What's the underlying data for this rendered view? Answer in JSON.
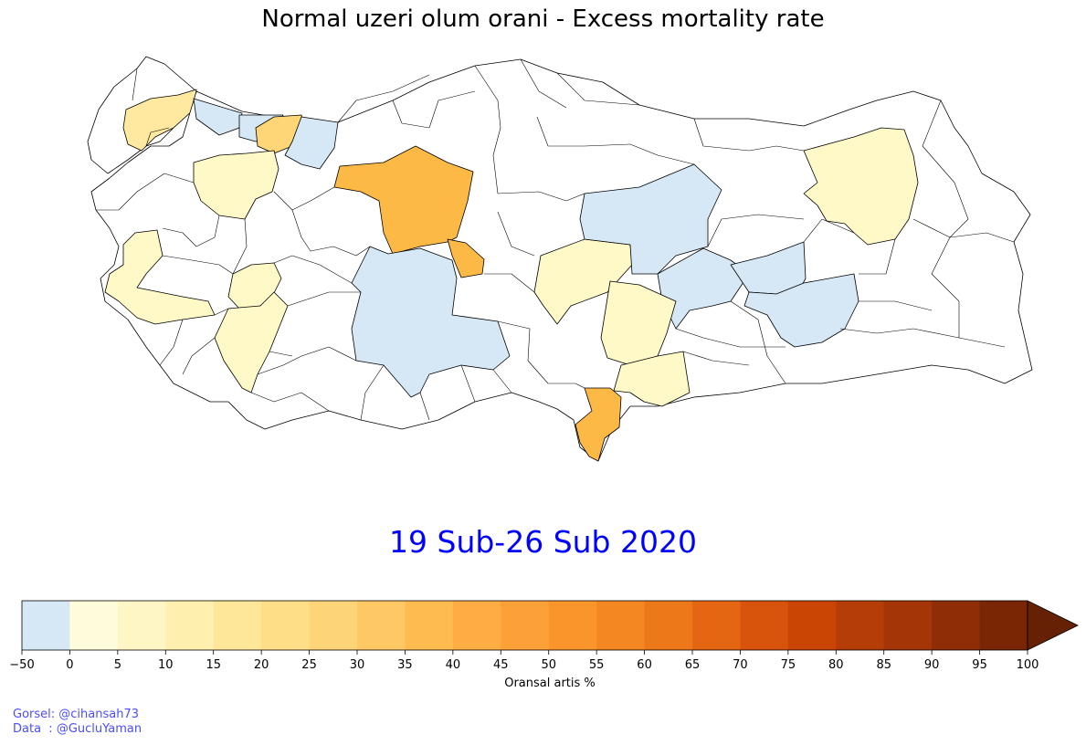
{
  "title": "Normal uzeri olum orani - Excess mortality rate",
  "date_label": "19 Sub-26 Sub 2020",
  "colorbar": {
    "label": "Oransal artis %",
    "ticks": [
      "−50",
      "0",
      "5",
      "10",
      "15",
      "20",
      "25",
      "30",
      "35",
      "40",
      "45",
      "50",
      "55",
      "60",
      "65",
      "70",
      "75",
      "80",
      "85",
      "90",
      "95",
      "100"
    ],
    "colors": [
      "#d6e8f5",
      "#fffcdc",
      "#fff6c6",
      "#fff0b0",
      "#ffe79a",
      "#ffde88",
      "#fed478",
      "#fec865",
      "#fdbb50",
      "#fdad44",
      "#fca138",
      "#f9952a",
      "#f48722",
      "#ed781a",
      "#e46613",
      "#d8540c",
      "#ca4503",
      "#b53d07",
      "#a33507",
      "#8e2d06",
      "#7a2605",
      "#662105"
    ]
  },
  "credits": {
    "line1": "Gorsel: @cihansah73",
    "line2": "Data  : @GucluYaman"
  },
  "legend_colors": {
    "below_normal": "#d6e8f5",
    "no_data": "#ffffff",
    "lvl_0_5": "#fffac8",
    "lvl_15_20": "#ffe9a0",
    "lvl_25_30": "#fed678",
    "lvl_35_40": "#fdb946"
  }
}
